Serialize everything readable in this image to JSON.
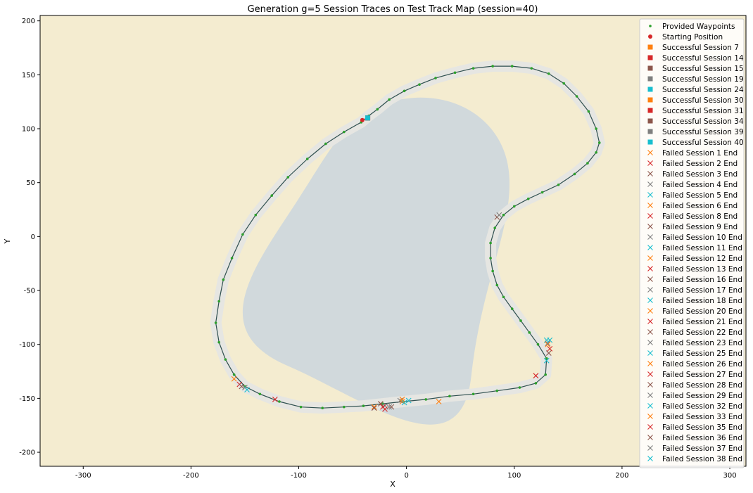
{
  "chart_data": {
    "type": "scatter",
    "title": "Generation g=5 Session Traces on Test Track Map (session=40)",
    "xlabel": "X",
    "ylabel": "Y",
    "xlim": [
      -340,
      315
    ],
    "ylim": [
      -213,
      205
    ],
    "xticks": [
      -300,
      -200,
      -100,
      0,
      100,
      200,
      300
    ],
    "yticks": [
      -200,
      -150,
      -100,
      -50,
      0,
      50,
      100,
      150,
      200
    ],
    "grid": false,
    "legend_position": "top-right",
    "colors": {
      "waypoints": "#2ca02c",
      "trace": "#2f4f4f",
      "start": "#d62728",
      "orange": "#ff7f0e",
      "red": "#d62728",
      "brown": "#8c564b",
      "gray": "#7f7f7f",
      "cyan": "#17becf",
      "lake": "#cfd8dc",
      "sand": "#f4ecd0",
      "road": "#e6e6e2"
    },
    "waypoints": [
      [
        -42,
        106
      ],
      [
        -35,
        112
      ],
      [
        -27,
        118
      ],
      [
        -16,
        127
      ],
      [
        -2,
        135
      ],
      [
        12,
        141
      ],
      [
        27,
        147
      ],
      [
        45,
        152
      ],
      [
        62,
        156
      ],
      [
        80,
        158
      ],
      [
        98,
        158
      ],
      [
        116,
        156
      ],
      [
        132,
        151
      ],
      [
        146,
        142
      ],
      [
        158,
        130
      ],
      [
        169,
        116
      ],
      [
        176,
        100
      ],
      [
        179,
        87
      ],
      [
        176,
        78
      ],
      [
        168,
        68
      ],
      [
        156,
        58
      ],
      [
        141,
        48
      ],
      [
        126,
        41
      ],
      [
        113,
        35
      ],
      [
        100,
        28
      ],
      [
        90,
        20
      ],
      [
        82,
        8
      ],
      [
        78,
        -6
      ],
      [
        78,
        -20
      ],
      [
        80,
        -32
      ],
      [
        84,
        -45
      ],
      [
        90,
        -56
      ],
      [
        98,
        -67
      ],
      [
        106,
        -78
      ],
      [
        114,
        -89
      ],
      [
        122,
        -100
      ],
      [
        130,
        -113
      ],
      [
        129,
        -128
      ],
      [
        120,
        -136
      ],
      [
        105,
        -140
      ],
      [
        84,
        -143
      ],
      [
        62,
        -146
      ],
      [
        40,
        -148
      ],
      [
        18,
        -151
      ],
      [
        -3,
        -153
      ],
      [
        -22,
        -155
      ],
      [
        -40,
        -157
      ],
      [
        -58,
        -158
      ],
      [
        -78,
        -159
      ],
      [
        -98,
        -158
      ],
      [
        -118,
        -153
      ],
      [
        -136,
        -146
      ],
      [
        -150,
        -139
      ],
      [
        -160,
        -128
      ],
      [
        -168,
        -114
      ],
      [
        -174,
        -98
      ],
      [
        -177,
        -80
      ],
      [
        -174,
        -60
      ],
      [
        -170,
        -40
      ],
      [
        -162,
        -20
      ],
      [
        -152,
        2
      ],
      [
        -140,
        20
      ],
      [
        -125,
        38
      ],
      [
        -110,
        55
      ],
      [
        -92,
        72
      ],
      [
        -75,
        86
      ],
      [
        -58,
        97
      ]
    ],
    "start": [
      -41,
      108
    ],
    "successful_sessions": [
      {
        "name": "Successful Session 7",
        "color": "#ff7f0e",
        "x": -36,
        "y": 110
      },
      {
        "name": "Successful Session 14",
        "color": "#d62728",
        "x": -36,
        "y": 110
      },
      {
        "name": "Successful Session 15",
        "color": "#8c564b",
        "x": -36,
        "y": 110
      },
      {
        "name": "Successful Session 19",
        "color": "#7f7f7f",
        "x": -36,
        "y": 110
      },
      {
        "name": "Successful Session 24",
        "color": "#17becf",
        "x": -36,
        "y": 110
      },
      {
        "name": "Successful Session 30",
        "color": "#ff7f0e",
        "x": -36,
        "y": 110
      },
      {
        "name": "Successful Session 31",
        "color": "#d62728",
        "x": -36,
        "y": 110
      },
      {
        "name": "Successful Session 34",
        "color": "#8c564b",
        "x": -36,
        "y": 110
      },
      {
        "name": "Successful Session 39",
        "color": "#7f7f7f",
        "x": -36,
        "y": 110
      },
      {
        "name": "Successful Session 40",
        "color": "#17becf",
        "x": -36,
        "y": 110
      }
    ],
    "failed_sessions": [
      {
        "name": "Failed Session 1 End",
        "color": "#ff7f0e",
        "x": -160,
        "y": -132
      },
      {
        "name": "Failed Session 2 End",
        "color": "#d62728",
        "x": -155,
        "y": -137
      },
      {
        "name": "Failed Session 3 End",
        "color": "#8c564b",
        "x": -153,
        "y": -139
      },
      {
        "name": "Failed Session 4 End",
        "color": "#7f7f7f",
        "x": -150,
        "y": -140
      },
      {
        "name": "Failed Session 5 End",
        "color": "#17becf",
        "x": -148,
        "y": -142
      },
      {
        "name": "Failed Session 6 End",
        "color": "#ff7f0e",
        "x": -30,
        "y": -158
      },
      {
        "name": "Failed Session 8 End",
        "color": "#d62728",
        "x": -122,
        "y": -151
      },
      {
        "name": "Failed Session 9 End",
        "color": "#8c564b",
        "x": -24,
        "y": -155
      },
      {
        "name": "Failed Session 10 End",
        "color": "#7f7f7f",
        "x": -20,
        "y": -157
      },
      {
        "name": "Failed Session 11 End",
        "color": "#17becf",
        "x": 2,
        "y": -152
      },
      {
        "name": "Failed Session 12 End",
        "color": "#ff7f0e",
        "x": -4,
        "y": -153
      },
      {
        "name": "Failed Session 13 End",
        "color": "#d62728",
        "x": -22,
        "y": -158
      },
      {
        "name": "Failed Session 16 End",
        "color": "#8c564b",
        "x": -14,
        "y": -158
      },
      {
        "name": "Failed Session 17 End",
        "color": "#7f7f7f",
        "x": -6,
        "y": -152
      },
      {
        "name": "Failed Session 18 End",
        "color": "#17becf",
        "x": -2,
        "y": -154
      },
      {
        "name": "Failed Session 20 End",
        "color": "#ff7f0e",
        "x": 30,
        "y": -153
      },
      {
        "name": "Failed Session 21 End",
        "color": "#d62728",
        "x": -20,
        "y": -160
      },
      {
        "name": "Failed Session 22 End",
        "color": "#8c564b",
        "x": 84,
        "y": 18
      },
      {
        "name": "Failed Session 23 End",
        "color": "#7f7f7f",
        "x": 86,
        "y": 20
      },
      {
        "name": "Failed Session 25 End",
        "color": "#17becf",
        "x": 130,
        "y": -96
      },
      {
        "name": "Failed Session 26 End",
        "color": "#ff7f0e",
        "x": 131,
        "y": -100
      },
      {
        "name": "Failed Session 27 End",
        "color": "#d62728",
        "x": 133,
        "y": -104
      },
      {
        "name": "Failed Session 28 End",
        "color": "#8c564b",
        "x": 132,
        "y": -108
      },
      {
        "name": "Failed Session 29 End",
        "color": "#7f7f7f",
        "x": 131,
        "y": -99
      },
      {
        "name": "Failed Session 32 End",
        "color": "#17becf",
        "x": 130,
        "y": -115
      },
      {
        "name": "Failed Session 33 End",
        "color": "#ff7f0e",
        "x": -4,
        "y": -151
      },
      {
        "name": "Failed Session 35 End",
        "color": "#d62728",
        "x": 120,
        "y": -129
      },
      {
        "name": "Failed Session 36 End",
        "color": "#8c564b",
        "x": -30,
        "y": -159
      },
      {
        "name": "Failed Session 37 End",
        "color": "#7f7f7f",
        "x": -16,
        "y": -158
      },
      {
        "name": "Failed Session 38 End",
        "color": "#17becf",
        "x": 133,
        "y": -96
      }
    ],
    "legend": [
      {
        "label": "Provided Waypoints",
        "marker": "dot",
        "color": "#2ca02c"
      },
      {
        "label": "Starting Position",
        "marker": "circle",
        "color": "#d62728"
      },
      {
        "label": "Successful Session 7",
        "marker": "square",
        "color": "#ff7f0e"
      },
      {
        "label": "Successful Session 14",
        "marker": "square",
        "color": "#d62728"
      },
      {
        "label": "Successful Session 15",
        "marker": "square",
        "color": "#8c564b"
      },
      {
        "label": "Successful Session 19",
        "marker": "square",
        "color": "#7f7f7f"
      },
      {
        "label": "Successful Session 24",
        "marker": "square",
        "color": "#17becf"
      },
      {
        "label": "Successful Session 30",
        "marker": "square",
        "color": "#ff7f0e"
      },
      {
        "label": "Successful Session 31",
        "marker": "square",
        "color": "#d62728"
      },
      {
        "label": "Successful Session 34",
        "marker": "square",
        "color": "#8c564b"
      },
      {
        "label": "Successful Session 39",
        "marker": "square",
        "color": "#7f7f7f"
      },
      {
        "label": "Successful Session 40",
        "marker": "square",
        "color": "#17becf"
      },
      {
        "label": "Failed Session 1 End",
        "marker": "x",
        "color": "#ff7f0e"
      },
      {
        "label": "Failed Session 2 End",
        "marker": "x",
        "color": "#d62728"
      },
      {
        "label": "Failed Session 3 End",
        "marker": "x",
        "color": "#8c564b"
      },
      {
        "label": "Failed Session 4 End",
        "marker": "x",
        "color": "#7f7f7f"
      },
      {
        "label": "Failed Session 5 End",
        "marker": "x",
        "color": "#17becf"
      },
      {
        "label": "Failed Session 6 End",
        "marker": "x",
        "color": "#ff7f0e"
      },
      {
        "label": "Failed Session 8 End",
        "marker": "x",
        "color": "#d62728"
      },
      {
        "label": "Failed Session 9 End",
        "marker": "x",
        "color": "#8c564b"
      },
      {
        "label": "Failed Session 10 End",
        "marker": "x",
        "color": "#7f7f7f"
      },
      {
        "label": "Failed Session 11 End",
        "marker": "x",
        "color": "#17becf"
      },
      {
        "label": "Failed Session 12 End",
        "marker": "x",
        "color": "#ff7f0e"
      },
      {
        "label": "Failed Session 13 End",
        "marker": "x",
        "color": "#d62728"
      },
      {
        "label": "Failed Session 16 End",
        "marker": "x",
        "color": "#8c564b"
      },
      {
        "label": "Failed Session 17 End",
        "marker": "x",
        "color": "#7f7f7f"
      },
      {
        "label": "Failed Session 18 End",
        "marker": "x",
        "color": "#17becf"
      },
      {
        "label": "Failed Session 20 End",
        "marker": "x",
        "color": "#ff7f0e"
      },
      {
        "label": "Failed Session 21 End",
        "marker": "x",
        "color": "#d62728"
      },
      {
        "label": "Failed Session 22 End",
        "marker": "x",
        "color": "#8c564b"
      },
      {
        "label": "Failed Session 23 End",
        "marker": "x",
        "color": "#7f7f7f"
      },
      {
        "label": "Failed Session 25 End",
        "marker": "x",
        "color": "#17becf"
      },
      {
        "label": "Failed Session 26 End",
        "marker": "x",
        "color": "#ff7f0e"
      },
      {
        "label": "Failed Session 27 End",
        "marker": "x",
        "color": "#d62728"
      },
      {
        "label": "Failed Session 28 End",
        "marker": "x",
        "color": "#8c564b"
      },
      {
        "label": "Failed Session 29 End",
        "marker": "x",
        "color": "#7f7f7f"
      },
      {
        "label": "Failed Session 32 End",
        "marker": "x",
        "color": "#17becf"
      },
      {
        "label": "Failed Session 33 End",
        "marker": "x",
        "color": "#ff7f0e"
      },
      {
        "label": "Failed Session 35 End",
        "marker": "x",
        "color": "#d62728"
      },
      {
        "label": "Failed Session 36 End",
        "marker": "x",
        "color": "#8c564b"
      },
      {
        "label": "Failed Session 37 End",
        "marker": "x",
        "color": "#7f7f7f"
      },
      {
        "label": "Failed Session 38 End",
        "marker": "x",
        "color": "#17becf"
      }
    ]
  }
}
